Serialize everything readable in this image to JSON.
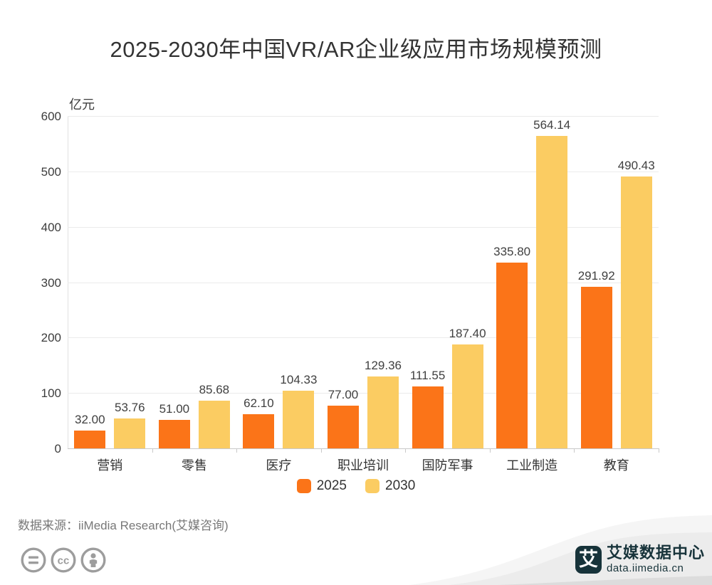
{
  "chart_data": {
    "type": "bar",
    "title": "2025-2030年中国VR/AR企业级应用市场规模预测",
    "unit_label": "亿元",
    "categories": [
      "营销",
      "零售",
      "医疗",
      "职业培训",
      "国防军事",
      "工业制造",
      "教育"
    ],
    "series": [
      {
        "name": "2025",
        "color": "#FB7418",
        "values": [
          32.0,
          51.0,
          62.1,
          77.0,
          111.55,
          335.8,
          291.92
        ]
      },
      {
        "name": "2030",
        "color": "#FBCC62",
        "values": [
          53.76,
          85.68,
          104.33,
          129.36,
          187.4,
          564.14,
          490.43
        ]
      }
    ],
    "value_decimals": 2,
    "xlabel": "",
    "ylabel": "亿元",
    "ylim": [
      0,
      600
    ],
    "yticks": [
      0,
      100,
      200,
      300,
      400,
      500,
      600
    ],
    "grid": true,
    "legend_position": "bottom"
  },
  "footer": {
    "source": "数据来源：iiMedia Research(艾媒咨询)"
  },
  "branding": {
    "logo_glyph": "艾",
    "logo_text": "艾媒数据中心",
    "logo_url": "data.iimedia.cn",
    "brand_color": "#17333A",
    "ribbon_color": "#ECECEC"
  },
  "license_icons": [
    "equals-license-icon",
    "creative-commons-icon",
    "attribution-person-icon"
  ],
  "colors": {
    "series_2025": "#FB7418",
    "series_2030": "#FBCC62",
    "icon_gray": "#9D9D9D"
  }
}
